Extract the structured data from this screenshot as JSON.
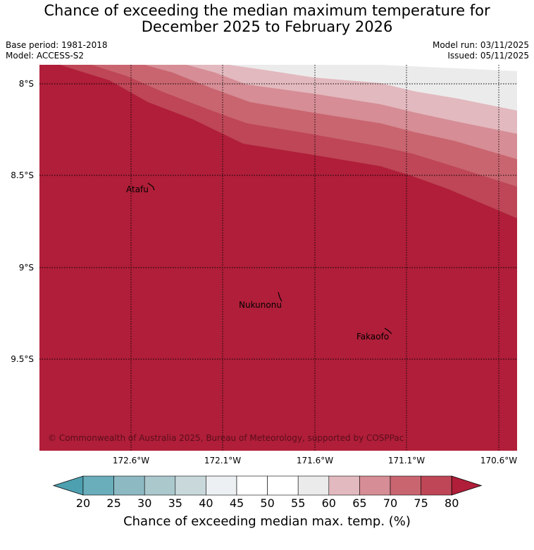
{
  "title": {
    "line1": "Chance of exceeding the median maximum temperature for",
    "line2": "December 2025 to February 2026"
  },
  "meta": {
    "base_period": "Base period: 1981-2018",
    "model": "Model: ACCESS-S2",
    "model_run": "Model run: 03/11/2025",
    "issued": "Issued: 05/11/2025"
  },
  "map": {
    "copyright": "© Commonwealth of Australia 2025, Bureau of Meteorology, supported by COSPPac",
    "lat_labels": [
      "8°S",
      "8.5°S",
      "9°S",
      "9.5°S"
    ],
    "lon_labels": [
      "172.6°W",
      "172.1°W",
      "171.6°W",
      "171.1°W",
      "170.6°W"
    ],
    "places": [
      "Atafu",
      "Nukunonu",
      "Fakaofo"
    ]
  },
  "colorbar": {
    "label": "Chance of exceeding median max. temp. (%)",
    "ticks": [
      "20",
      "25",
      "30",
      "35",
      "40",
      "45",
      "50",
      "55",
      "60",
      "65",
      "70",
      "75",
      "80"
    ],
    "colors": [
      "#4da0b0",
      "#6aadbb",
      "#8db9c3",
      "#abc8cd",
      "#c9d8db",
      "#ecf0f2",
      "#ffffff",
      "#ffffff",
      "#ecebec",
      "#e2b9be",
      "#d68d95",
      "#c9656f",
      "#be4656",
      "#b01e39"
    ]
  }
}
